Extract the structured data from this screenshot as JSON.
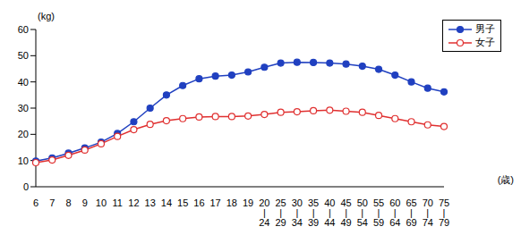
{
  "chart_data": {
    "type": "line",
    "y_label": "(kg)",
    "x_label": "(歳)",
    "categories": [
      "6",
      "7",
      "8",
      "9",
      "10",
      "11",
      "12",
      "13",
      "14",
      "15",
      "16",
      "17",
      "18",
      "19",
      "20\n|\n24",
      "25\n|\n29",
      "30\n|\n34",
      "35\n|\n39",
      "40\n|\n44",
      "45\n|\n49",
      "50\n|\n54",
      "55\n|\n59",
      "60\n|\n64",
      "65\n|\n69",
      "70\n|\n74",
      "75\n|\n79"
    ],
    "series": [
      {
        "name": "男子",
        "color": "#2040c0",
        "marker": "filled_circle",
        "values": [
          9.8,
          11,
          12.8,
          14.8,
          17,
          20.3,
          24.8,
          30,
          35,
          38.6,
          41.2,
          42.2,
          42.6,
          43.8,
          45.6,
          47.2,
          47.5,
          47.4,
          47.2,
          46.8,
          46,
          44.8,
          42.6,
          40,
          37.6,
          36.2
        ]
      },
      {
        "name": "女子",
        "color": "#e03030",
        "marker": "open_circle",
        "values": [
          9.2,
          10.2,
          12,
          14,
          16.4,
          19.2,
          21.8,
          23.8,
          25.2,
          26,
          26.6,
          26.8,
          26.8,
          27,
          27.6,
          28.4,
          28.6,
          29,
          29.2,
          28.8,
          28.4,
          27.2,
          26,
          24.8,
          23.6,
          23
        ]
      }
    ],
    "ylim": [
      0,
      60
    ],
    "yticks": [
      0,
      10,
      20,
      30,
      40,
      50,
      60
    ],
    "grid": false,
    "legend": "upper right"
  }
}
